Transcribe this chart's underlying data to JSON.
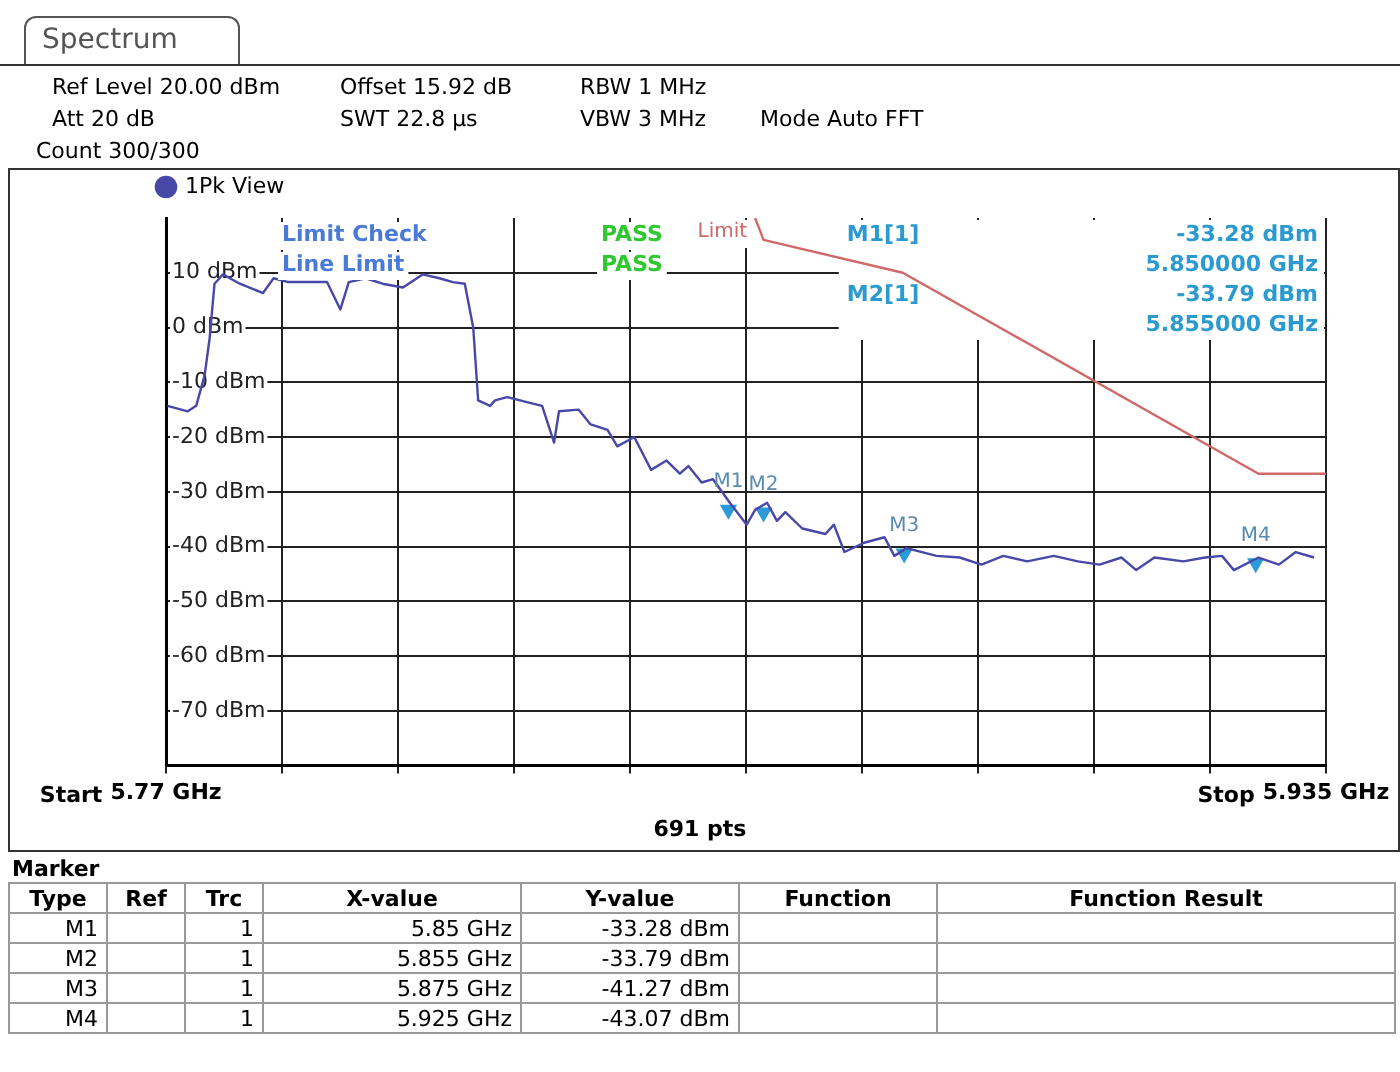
{
  "chart_data": {
    "type": "line",
    "title": "Spectrum",
    "xlim": [
      5.77,
      5.935
    ],
    "xticks": [
      {
        "value": 5.77,
        "label": "5.77 GHz"
      },
      {
        "value": 5.7865,
        "label": null
      },
      {
        "value": 5.803,
        "label": null
      },
      {
        "value": 5.8195,
        "label": null
      },
      {
        "value": 5.836,
        "label": null
      },
      {
        "value": 5.8525,
        "label": null
      },
      {
        "value": 5.869,
        "label": null
      },
      {
        "value": 5.8855,
        "label": null
      },
      {
        "value": 5.902,
        "label": null
      },
      {
        "value": 5.9185,
        "label": null
      },
      {
        "value": 5.935,
        "label": "5.935 GHz"
      }
    ],
    "ylim": [
      -80,
      20
    ],
    "yticks": [
      {
        "value": 10,
        "label": "10 dBm"
      },
      {
        "value": 0,
        "label": "0 dBm"
      },
      {
        "value": -10,
        "label": "-10 dBm"
      },
      {
        "value": -20,
        "label": "-20 dBm"
      },
      {
        "value": -30,
        "label": "-30 dBm"
      },
      {
        "value": -40,
        "label": "-40 dBm"
      },
      {
        "value": -50,
        "label": "-50 dBm"
      },
      {
        "value": -60,
        "label": "-60 dBm"
      },
      {
        "value": -70,
        "label": "-70 dBm"
      }
    ],
    "grid": true,
    "legend": "top left",
    "marker": "none",
    "series": [
      {
        "name": "1Pk View",
        "color": "#4848a8",
        "x": [
          5.7702,
          5.7731,
          5.7743,
          5.7755,
          5.7762,
          5.7769,
          5.7781,
          5.7805,
          5.7838,
          5.7853,
          5.7874,
          5.7905,
          5.7929,
          5.7948,
          5.796,
          5.7984,
          5.8008,
          5.8037,
          5.8065,
          5.8089,
          5.8108,
          5.8125,
          5.8137,
          5.8144,
          5.8161,
          5.8168,
          5.8185,
          5.8216,
          5.8235,
          5.8252,
          5.8259,
          5.8287,
          5.8304,
          5.8328,
          5.8342,
          5.8366,
          5.839,
          5.8412,
          5.8431,
          5.8443,
          5.8462,
          5.8478,
          5.8502,
          5.8526,
          5.8538,
          5.8555,
          5.8569,
          5.8581,
          5.8605,
          5.8638,
          5.865,
          5.8665,
          5.8693,
          5.8722,
          5.8736,
          5.8753,
          5.8796,
          5.8829,
          5.886,
          5.8891,
          5.8925,
          5.8963,
          5.8997,
          5.9028,
          5.9059,
          5.908,
          5.9106,
          5.9147,
          5.9178,
          5.9202,
          5.9219,
          5.9254,
          5.9283,
          5.9307,
          5.9333
        ],
        "values": [
          -14.3,
          -15.3,
          -14.3,
          -8.7,
          -2,
          8,
          9.7,
          8,
          6.3,
          9,
          8.3,
          8.3,
          8.3,
          3.3,
          8.3,
          9,
          8,
          7.3,
          9.7,
          9,
          8.3,
          8,
          0,
          -13.3,
          -14.3,
          -13.3,
          -12.7,
          -13.7,
          -14.3,
          -21,
          -15.3,
          -15,
          -17.7,
          -18.7,
          -21.7,
          -20,
          -26,
          -24.3,
          -26.7,
          -25.3,
          -28.3,
          -27.7,
          -32,
          -36,
          -33.3,
          -32,
          -35.3,
          -33.7,
          -36.7,
          -37.7,
          -36,
          -41,
          -39.3,
          -38.3,
          -41.7,
          -40.3,
          -41.7,
          -42,
          -43.3,
          -41.7,
          -42.7,
          -41.7,
          -42.7,
          -43.3,
          -42,
          -44.3,
          -42,
          -42.7,
          -42,
          -41.7,
          -44.3,
          -42,
          -43.3,
          -41,
          -42
        ]
      },
      {
        "name": "Limit",
        "color": "#d06868",
        "x": [
          5.8538,
          5.855,
          5.8748,
          5.9254,
          5.935
        ],
        "values": [
          20,
          16,
          10,
          -26.7,
          -26.7
        ]
      },
      {
        "type": "scatter",
        "color": "#2a9ad8",
        "marker": "triangle",
        "x": [
          5.85,
          5.855,
          5.875,
          5.925
        ],
        "values": [
          -33.28,
          -33.79,
          -41.27,
          -43.07
        ],
        "value_labels": [
          "M1",
          "M2",
          "M3",
          "M4"
        ]
      }
    ],
    "annotations": [
      "Ref Level 20.00 dBm",
      "Offset 15.92 dB",
      "RBW 1 MHz",
      "Att 20 dB",
      "SWT 22.8 µs",
      "VBW 3 MHz",
      "Mode Auto FFT",
      "Count 300/300",
      "691 pts",
      "M1[1]",
      "-33.28 dBm",
      "5.850000 GHz",
      "M2[1]",
      "-33.79 dBm",
      "5.855000 GHz",
      "Limit Check",
      "PASS",
      "Line Limit",
      "PASS",
      "Marker",
      "Type",
      "Ref",
      "Trc",
      "X-value",
      "Y-value",
      "Function",
      "Function Result",
      "M1",
      "1",
      "5.85 GHz",
      "-33.28 dBm",
      "M2",
      "1",
      "5.855 GHz",
      "-33.79 dBm",
      "M3",
      "1",
      "5.875 GHz",
      "-41.27 dBm",
      "M4",
      "1",
      "5.925 GHz",
      "-43.07 dBm",
      "Start",
      "Stop"
    ]
  }
}
